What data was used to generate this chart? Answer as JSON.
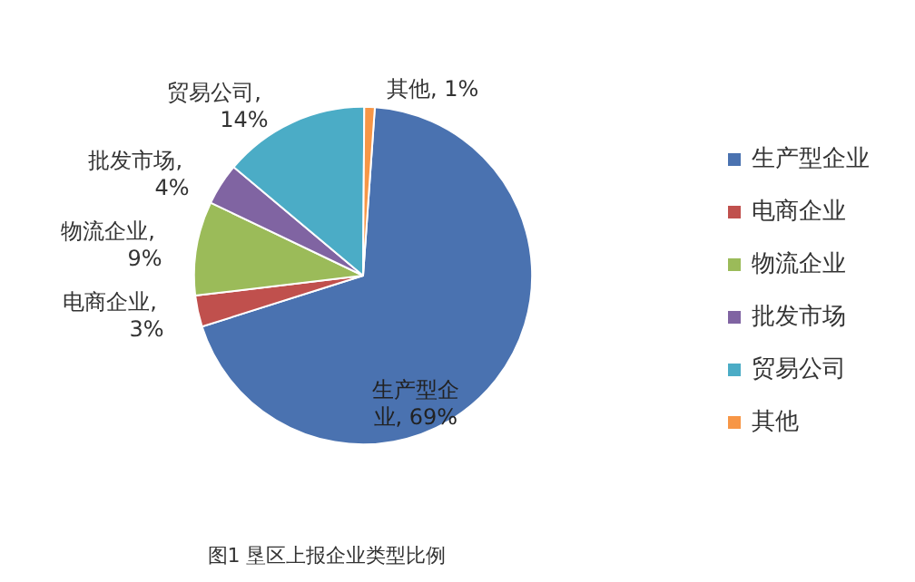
{
  "chart_data": {
    "type": "pie",
    "title": "图1 垦区上报企业类型比例",
    "categories": [
      "生产型企业",
      "电商企业",
      "物流企业",
      "批发市场",
      "贸易公司",
      "其他"
    ],
    "values": [
      69,
      3,
      9,
      4,
      14,
      1
    ],
    "colors": [
      "#4a72b0",
      "#c0504d",
      "#9bbb59",
      "#8064a2",
      "#4bacc6",
      "#f79646"
    ],
    "value_labels": [
      "生产型企业, 69%",
      "电商企业, 3%",
      "物流企业, 9%",
      "批发市场, 4%",
      "贸易公司, 14%",
      "其他, 1%"
    ],
    "legend": "right"
  }
}
